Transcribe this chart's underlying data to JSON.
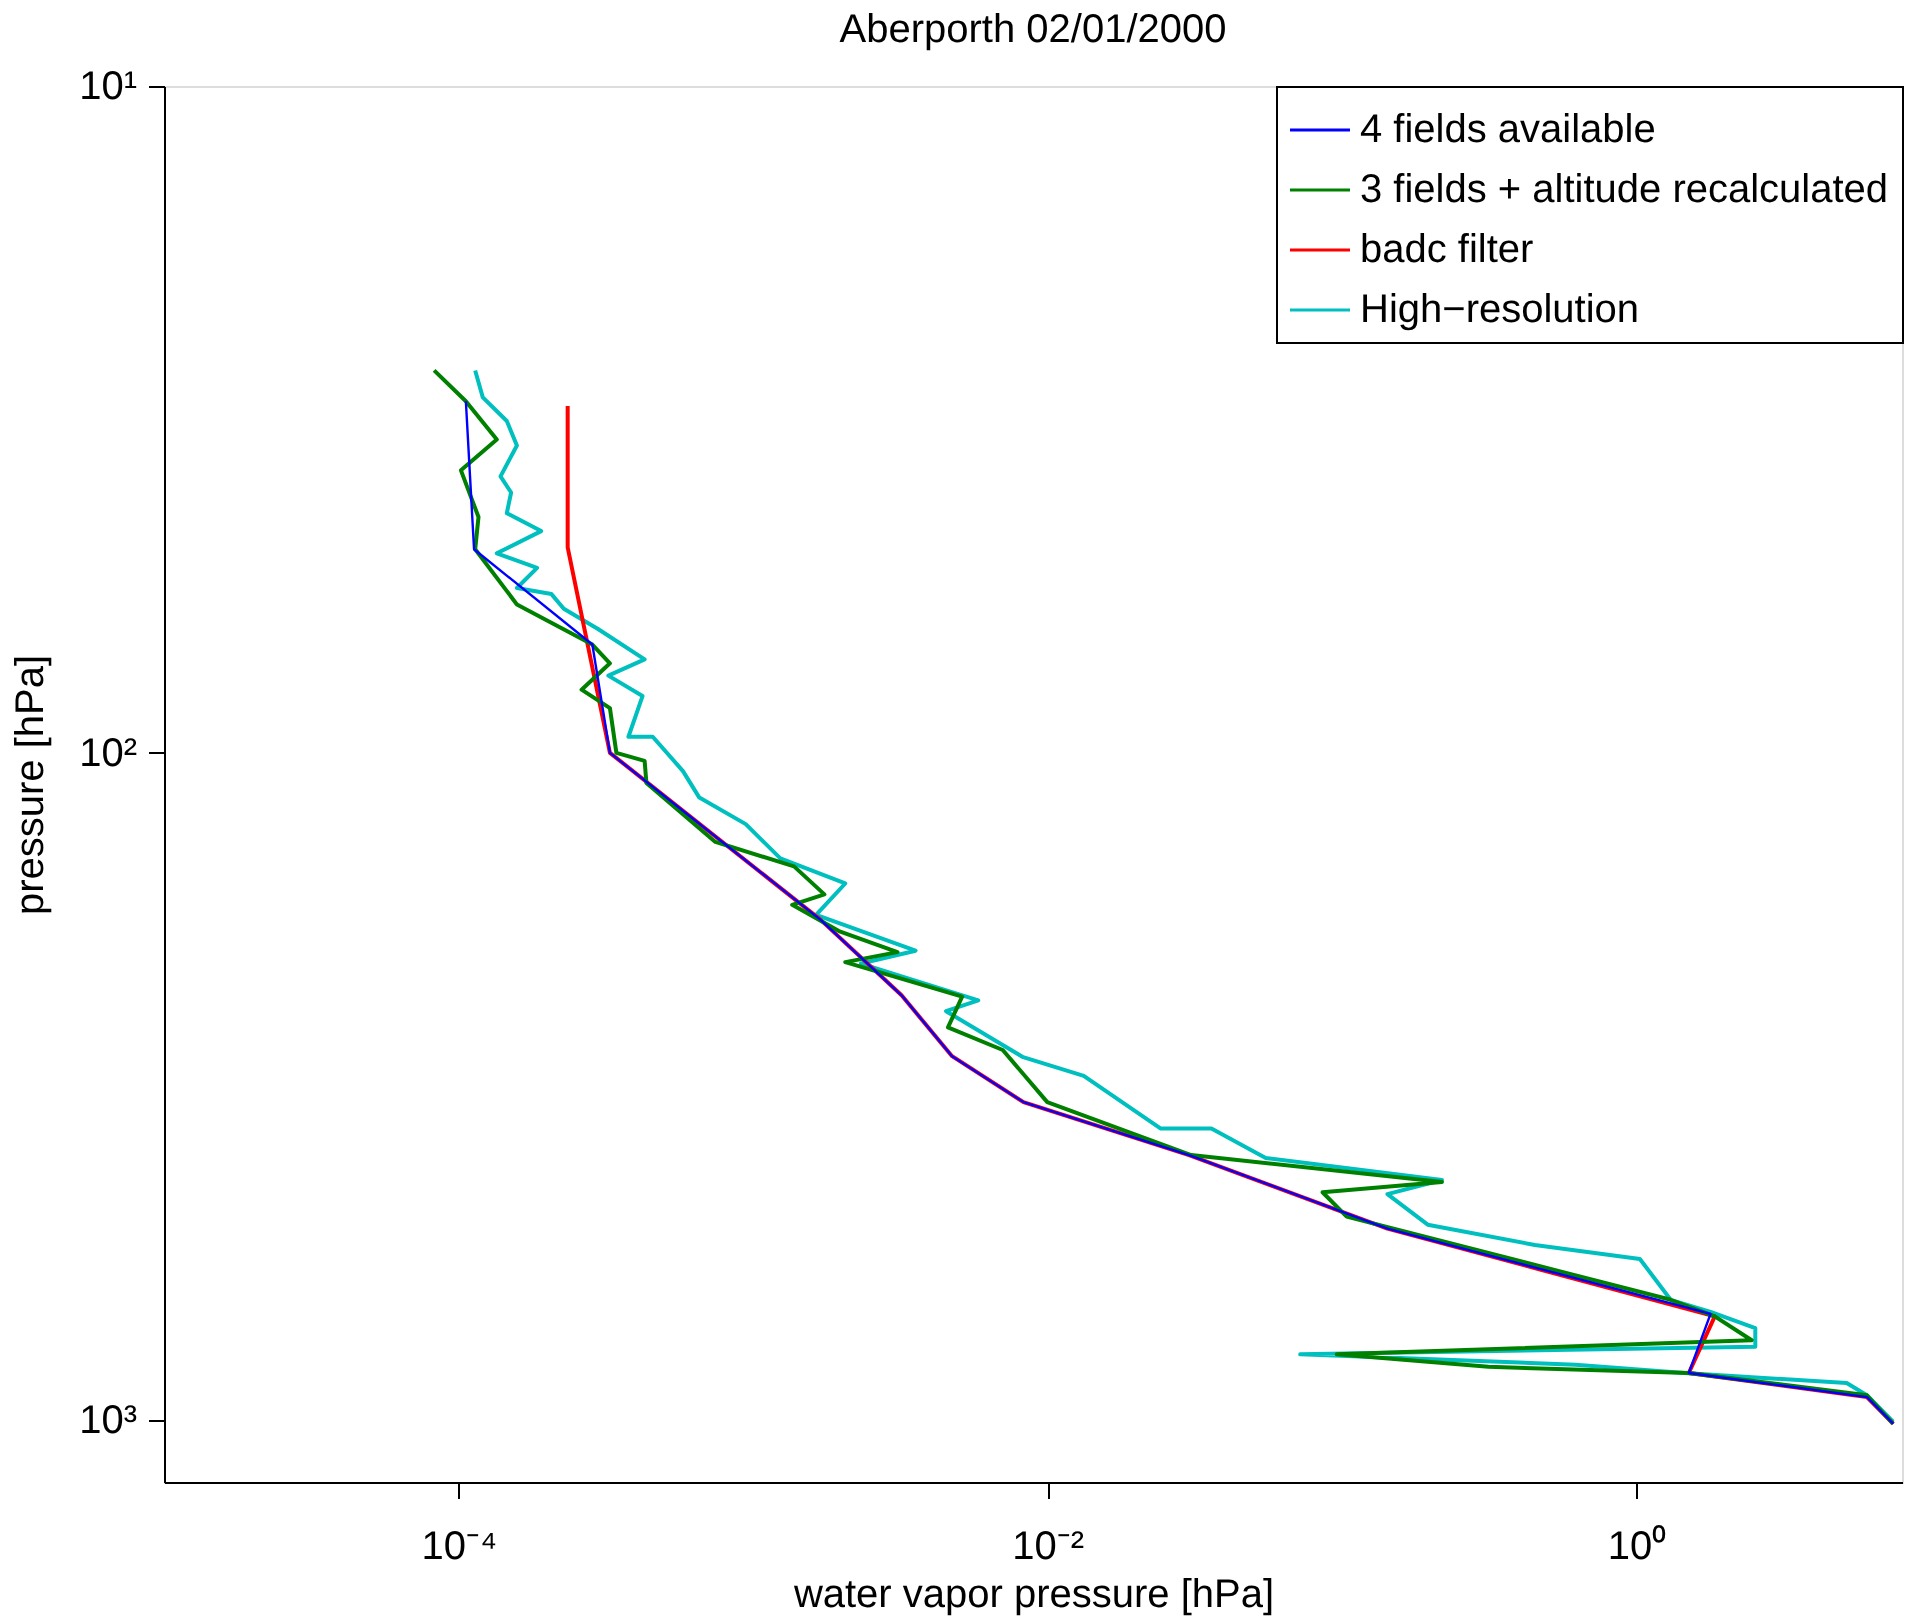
{
  "chart_data": {
    "type": "line",
    "title": "Aberporth 02/01/2000",
    "xlabel": "water vapor pressure [hPa]",
    "ylabel": "pressure [hPa]",
    "log": "xy",
    "grid": false,
    "legend": "top right",
    "marker": "none",
    "line_style": "solid",
    "xlim": [
      1e-05,
      8
    ],
    "ylim": [
      1240,
      10
    ],
    "xticks": [
      {
        "value": 0.0001,
        "label": "10⁻⁴"
      },
      {
        "value": 0.01,
        "label": "10⁻²"
      },
      {
        "value": 1,
        "label": "10⁰"
      }
    ],
    "yticks": [
      {
        "value": 10,
        "label": "10¹"
      },
      {
        "value": 100,
        "label": "10²"
      },
      {
        "value": 1000,
        "label": "10³"
      }
    ],
    "series": [
      {
        "name": "4 fields available",
        "color": "#0000ff",
        "x": [
          0.000106,
          0.000113,
          0.000285,
          0.000327,
          0.0017,
          0.0032,
          0.00475,
          0.0083,
          0.0303,
          0.143,
          1.79,
          1.51,
          6.08,
          7.47
        ],
        "values": [
          29.7,
          49.5,
          68.8,
          100,
          178,
          231,
          285,
          334,
          401,
          517,
          694,
          851,
          925,
          1014
        ]
      },
      {
        "name": "3 fields + altitude recalculated",
        "color": "#008000",
        "x": [
          8.27e-05,
          0.000106,
          0.000135,
          0.000102,
          0.000117,
          0.000114,
          0.000158,
          0.000285,
          0.000327,
          0.000262,
          0.000327,
          0.000344,
          0.000429,
          0.000435,
          0.000746,
          0.00138,
          0.00175,
          0.00136,
          0.00196,
          0.0031,
          0.00206,
          0.00514,
          0.0046,
          0.00706,
          0.01,
          0.0308,
          0.219,
          0.0861,
          0.104,
          1.31,
          1.85,
          2.47,
          0.0962,
          0.315,
          1.51,
          6.08,
          7.46
        ],
        "values": [
          26.7,
          29.7,
          33.9,
          37.7,
          44.3,
          49.5,
          59.9,
          68.8,
          73.4,
          80.4,
          85.7,
          100,
          102.8,
          111,
          136,
          148,
          163,
          169,
          185,
          199,
          206,
          232,
          258,
          279,
          334,
          401,
          440,
          456,
          496,
          661,
          700,
          760,
          798,
          833,
          851,
          919,
          1014
        ]
      },
      {
        "name": "badc filter",
        "color": "#ff0000",
        "x": [
          0.000235,
          0.000235,
          0.000327,
          0.0017,
          0.0032,
          0.00475,
          0.0083,
          0.0303,
          0.143,
          1.85,
          1.51,
          6.08,
          7.47
        ],
        "values": [
          30.2,
          49.2,
          100,
          178,
          231,
          285,
          334,
          401,
          517,
          700,
          851,
          925,
          1014
        ]
      },
      {
        "name": "High−resolution",
        "color": "#00bfbf",
        "x": [
          0.000114,
          0.000121,
          0.000146,
          0.000158,
          0.000139,
          0.000151,
          0.000146,
          0.000191,
          0.000135,
          0.000185,
          0.000158,
          0.000207,
          0.000228,
          0.000298,
          0.000429,
          0.000323,
          0.000422,
          0.000378,
          0.000457,
          0.000579,
          0.000658,
          0.000946,
          0.00124,
          0.00206,
          0.00164,
          0.00357,
          0.00233,
          0.00583,
          0.00453,
          0.00828,
          0.0133,
          0.0243,
          0.0361,
          0.0552,
          0.219,
          0.143,
          0.196,
          0.453,
          1.03,
          1.31,
          1.79,
          2.54,
          2.54,
          0.0723,
          0.622,
          1.46,
          5.19,
          6.08,
          7.46
        ],
        "values": [
          26.7,
          29.3,
          31.8,
          34.6,
          38.5,
          40.7,
          43.7,
          46.5,
          50.2,
          52.8,
          56.6,
          57.8,
          60.8,
          65.2,
          72.4,
          76.6,
          82.2,
          94.6,
          94.6,
          106.5,
          116.7,
          127.9,
          144,
          157,
          175,
          198,
          207,
          235,
          244,
          286,
          305,
          366,
          366,
          405,
          437,
          459,
          510,
          547,
          574,
          661,
          689,
          729,
          777,
          798,
          827,
          851,
          881,
          919,
          1007
        ]
      }
    ]
  }
}
